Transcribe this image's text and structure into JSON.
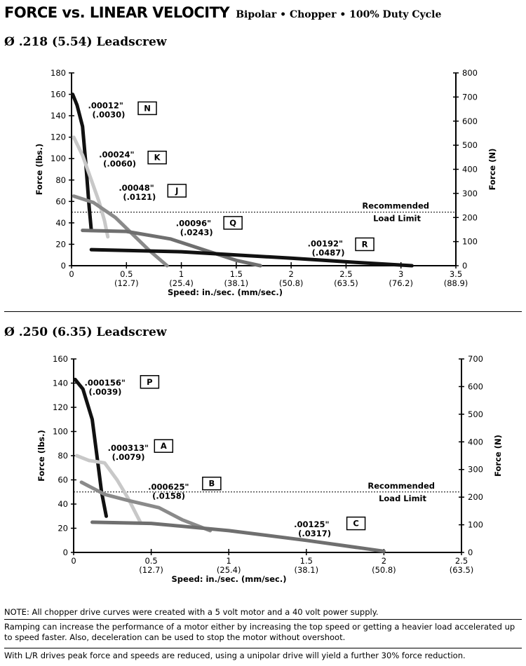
{
  "header": {
    "title": "FORCE vs. LINEAR VELOCITY",
    "subtitle": "Bipolar • Chopper • 100% Duty Cycle"
  },
  "notes": {
    "note1": "NOTE: All chopper drive curves were created with a 5 volt motor and a 40 volt power supply.",
    "note2": "Ramping can increase the performance of a motor either by increasing the top speed or getting a heavier load accelerated up to speed faster.  Also, deceleration can be used to stop the motor without overshoot.",
    "note3": "With L/R drives peak force and speeds are reduced, using a unipolar drive will yield a further 30% force reduction."
  },
  "chart_data": [
    {
      "type": "line",
      "title": "Ø .218 (5.54) Leadscrew",
      "xlabel": "Speed:  in./sec. (mm/sec.)",
      "ylabel": "Force (lbs.)",
      "y2label": "Force (N)",
      "xlim": [
        0,
        3.5
      ],
      "ylim": [
        0,
        180
      ],
      "y2lim": [
        0,
        800
      ],
      "xticks": [
        0,
        0.5,
        1,
        1.5,
        2,
        2.5,
        3,
        3.5
      ],
      "xtick_labels": [
        "0",
        "0.5",
        "1",
        "1.5",
        "2",
        "2.5",
        "3",
        "3.5"
      ],
      "xtick_sublabels": [
        "",
        "(12.7)",
        "(25.4)",
        "(38.1)",
        "(50.8)",
        "(63.5)",
        "(76.2)",
        "(88.9)"
      ],
      "yticks": [
        0,
        20,
        40,
        60,
        80,
        100,
        120,
        140,
        160,
        180
      ],
      "y2ticks": [
        0,
        100,
        200,
        300,
        400,
        500,
        600,
        700,
        800
      ],
      "reference_line": {
        "y": 50,
        "label_line1": "Recommended",
        "label_line2": "Load Limit"
      },
      "series": [
        {
          "name": "N",
          "pitch_in": ".00012\"",
          "pitch_mm": "(.0030)",
          "color": "#111111",
          "x": [
            0.01,
            0.05,
            0.1,
            0.13,
            0.16,
            0.18
          ],
          "y": [
            160,
            150,
            130,
            95,
            55,
            33
          ]
        },
        {
          "name": "K",
          "pitch_in": ".00024\"",
          "pitch_mm": "(.0060)",
          "color": "#c8c8c8",
          "x": [
            0.02,
            0.1,
            0.18,
            0.25,
            0.3,
            0.33
          ],
          "y": [
            120,
            103,
            80,
            60,
            42,
            27
          ]
        },
        {
          "name": "J",
          "pitch_in": ".00048\"",
          "pitch_mm": "(.0121)",
          "color": "#8a8a8a",
          "x": [
            0.02,
            0.2,
            0.4,
            0.55,
            0.7,
            0.87
          ],
          "y": [
            65,
            59,
            45,
            30,
            15,
            0
          ]
        },
        {
          "name": "Q",
          "pitch_in": ".00096\"",
          "pitch_mm": "(.0243)",
          "color": "#6f6f6f",
          "x": [
            0.1,
            0.5,
            0.9,
            1.2,
            1.5,
            1.72
          ],
          "y": [
            33,
            32,
            25,
            15,
            5,
            0
          ]
        },
        {
          "name": "R",
          "pitch_in": ".00192\"",
          "pitch_mm": "(.0487)",
          "color": "#111111",
          "x": [
            0.18,
            1.0,
            2.0,
            2.6,
            3.1
          ],
          "y": [
            15,
            13,
            7,
            3,
            0
          ]
        }
      ],
      "annotations": [
        {
          "series": "N",
          "label_x": 0.15,
          "label_y": 147,
          "box_x": 0.69,
          "box_y": 147
        },
        {
          "series": "K",
          "label_x": 0.25,
          "label_y": 101,
          "box_x": 0.78,
          "box_y": 101
        },
        {
          "series": "J",
          "label_x": 0.43,
          "label_y": 70,
          "box_x": 0.96,
          "box_y": 70
        },
        {
          "series": "Q",
          "label_x": 0.95,
          "label_y": 37,
          "box_x": 1.47,
          "box_y": 40
        },
        {
          "series": "R",
          "label_x": 2.15,
          "label_y": 18,
          "box_x": 2.67,
          "box_y": 20
        }
      ]
    },
    {
      "type": "line",
      "title": "Ø .250 (6.35) Leadscrew",
      "xlabel": "Speed:  in./sec. (mm/sec.)",
      "ylabel": "Force (lbs.)",
      "y2label": "Force (N)",
      "xlim": [
        0,
        2.5
      ],
      "ylim": [
        0,
        160
      ],
      "y2lim": [
        0,
        700
      ],
      "xticks": [
        0,
        0.5,
        1,
        1.5,
        2,
        2.5
      ],
      "xtick_labels": [
        "0",
        "0.5",
        "1",
        "1.5",
        "2",
        "2.5"
      ],
      "xtick_sublabels": [
        "",
        "(12.7)",
        "(25.4)",
        "(38.1)",
        "(50.8)",
        "(63.5)"
      ],
      "yticks": [
        0,
        20,
        40,
        60,
        80,
        100,
        120,
        140,
        160
      ],
      "y2ticks": [
        0,
        100,
        200,
        300,
        400,
        500,
        600,
        700
      ],
      "reference_line": {
        "y": 50,
        "label_line1": "Recommended",
        "label_line2": "Load Limit"
      },
      "series": [
        {
          "name": "P",
          "pitch_in": ".000156\"",
          "pitch_mm": "(.0039)",
          "color": "#111111",
          "x": [
            0.01,
            0.06,
            0.12,
            0.15,
            0.18,
            0.21
          ],
          "y": [
            143,
            135,
            110,
            80,
            50,
            30
          ]
        },
        {
          "name": "A",
          "pitch_in": ".000313\"",
          "pitch_mm": "(.0079)",
          "color": "#c8c8c8",
          "x": [
            0.02,
            0.1,
            0.2,
            0.28,
            0.35,
            0.43
          ],
          "y": [
            80,
            76,
            74,
            60,
            45,
            25
          ]
        },
        {
          "name": "B",
          "pitch_in": ".000625\"",
          "pitch_mm": "(.0158)",
          "color": "#8a8a8a",
          "x": [
            0.05,
            0.2,
            0.35,
            0.55,
            0.7,
            0.88
          ],
          "y": [
            58,
            48,
            43,
            37,
            27,
            18
          ]
        },
        {
          "name": "C",
          "pitch_in": ".00125\"",
          "pitch_mm": "(.0317)",
          "color": "#6f6f6f",
          "x": [
            0.12,
            0.5,
            1.0,
            1.5,
            2.0
          ],
          "y": [
            25,
            24,
            18,
            10,
            1
          ]
        }
      ],
      "annotations": [
        {
          "series": "P",
          "label_x": 0.07,
          "label_y": 138,
          "box_x": 0.49,
          "box_y": 141
        },
        {
          "series": "A",
          "label_x": 0.22,
          "label_y": 84,
          "box_x": 0.58,
          "box_y": 88
        },
        {
          "series": "B",
          "label_x": 0.48,
          "label_y": 52,
          "box_x": 0.89,
          "box_y": 57
        },
        {
          "series": "C",
          "label_x": 1.42,
          "label_y": 21,
          "box_x": 1.82,
          "box_y": 24
        }
      ]
    }
  ]
}
